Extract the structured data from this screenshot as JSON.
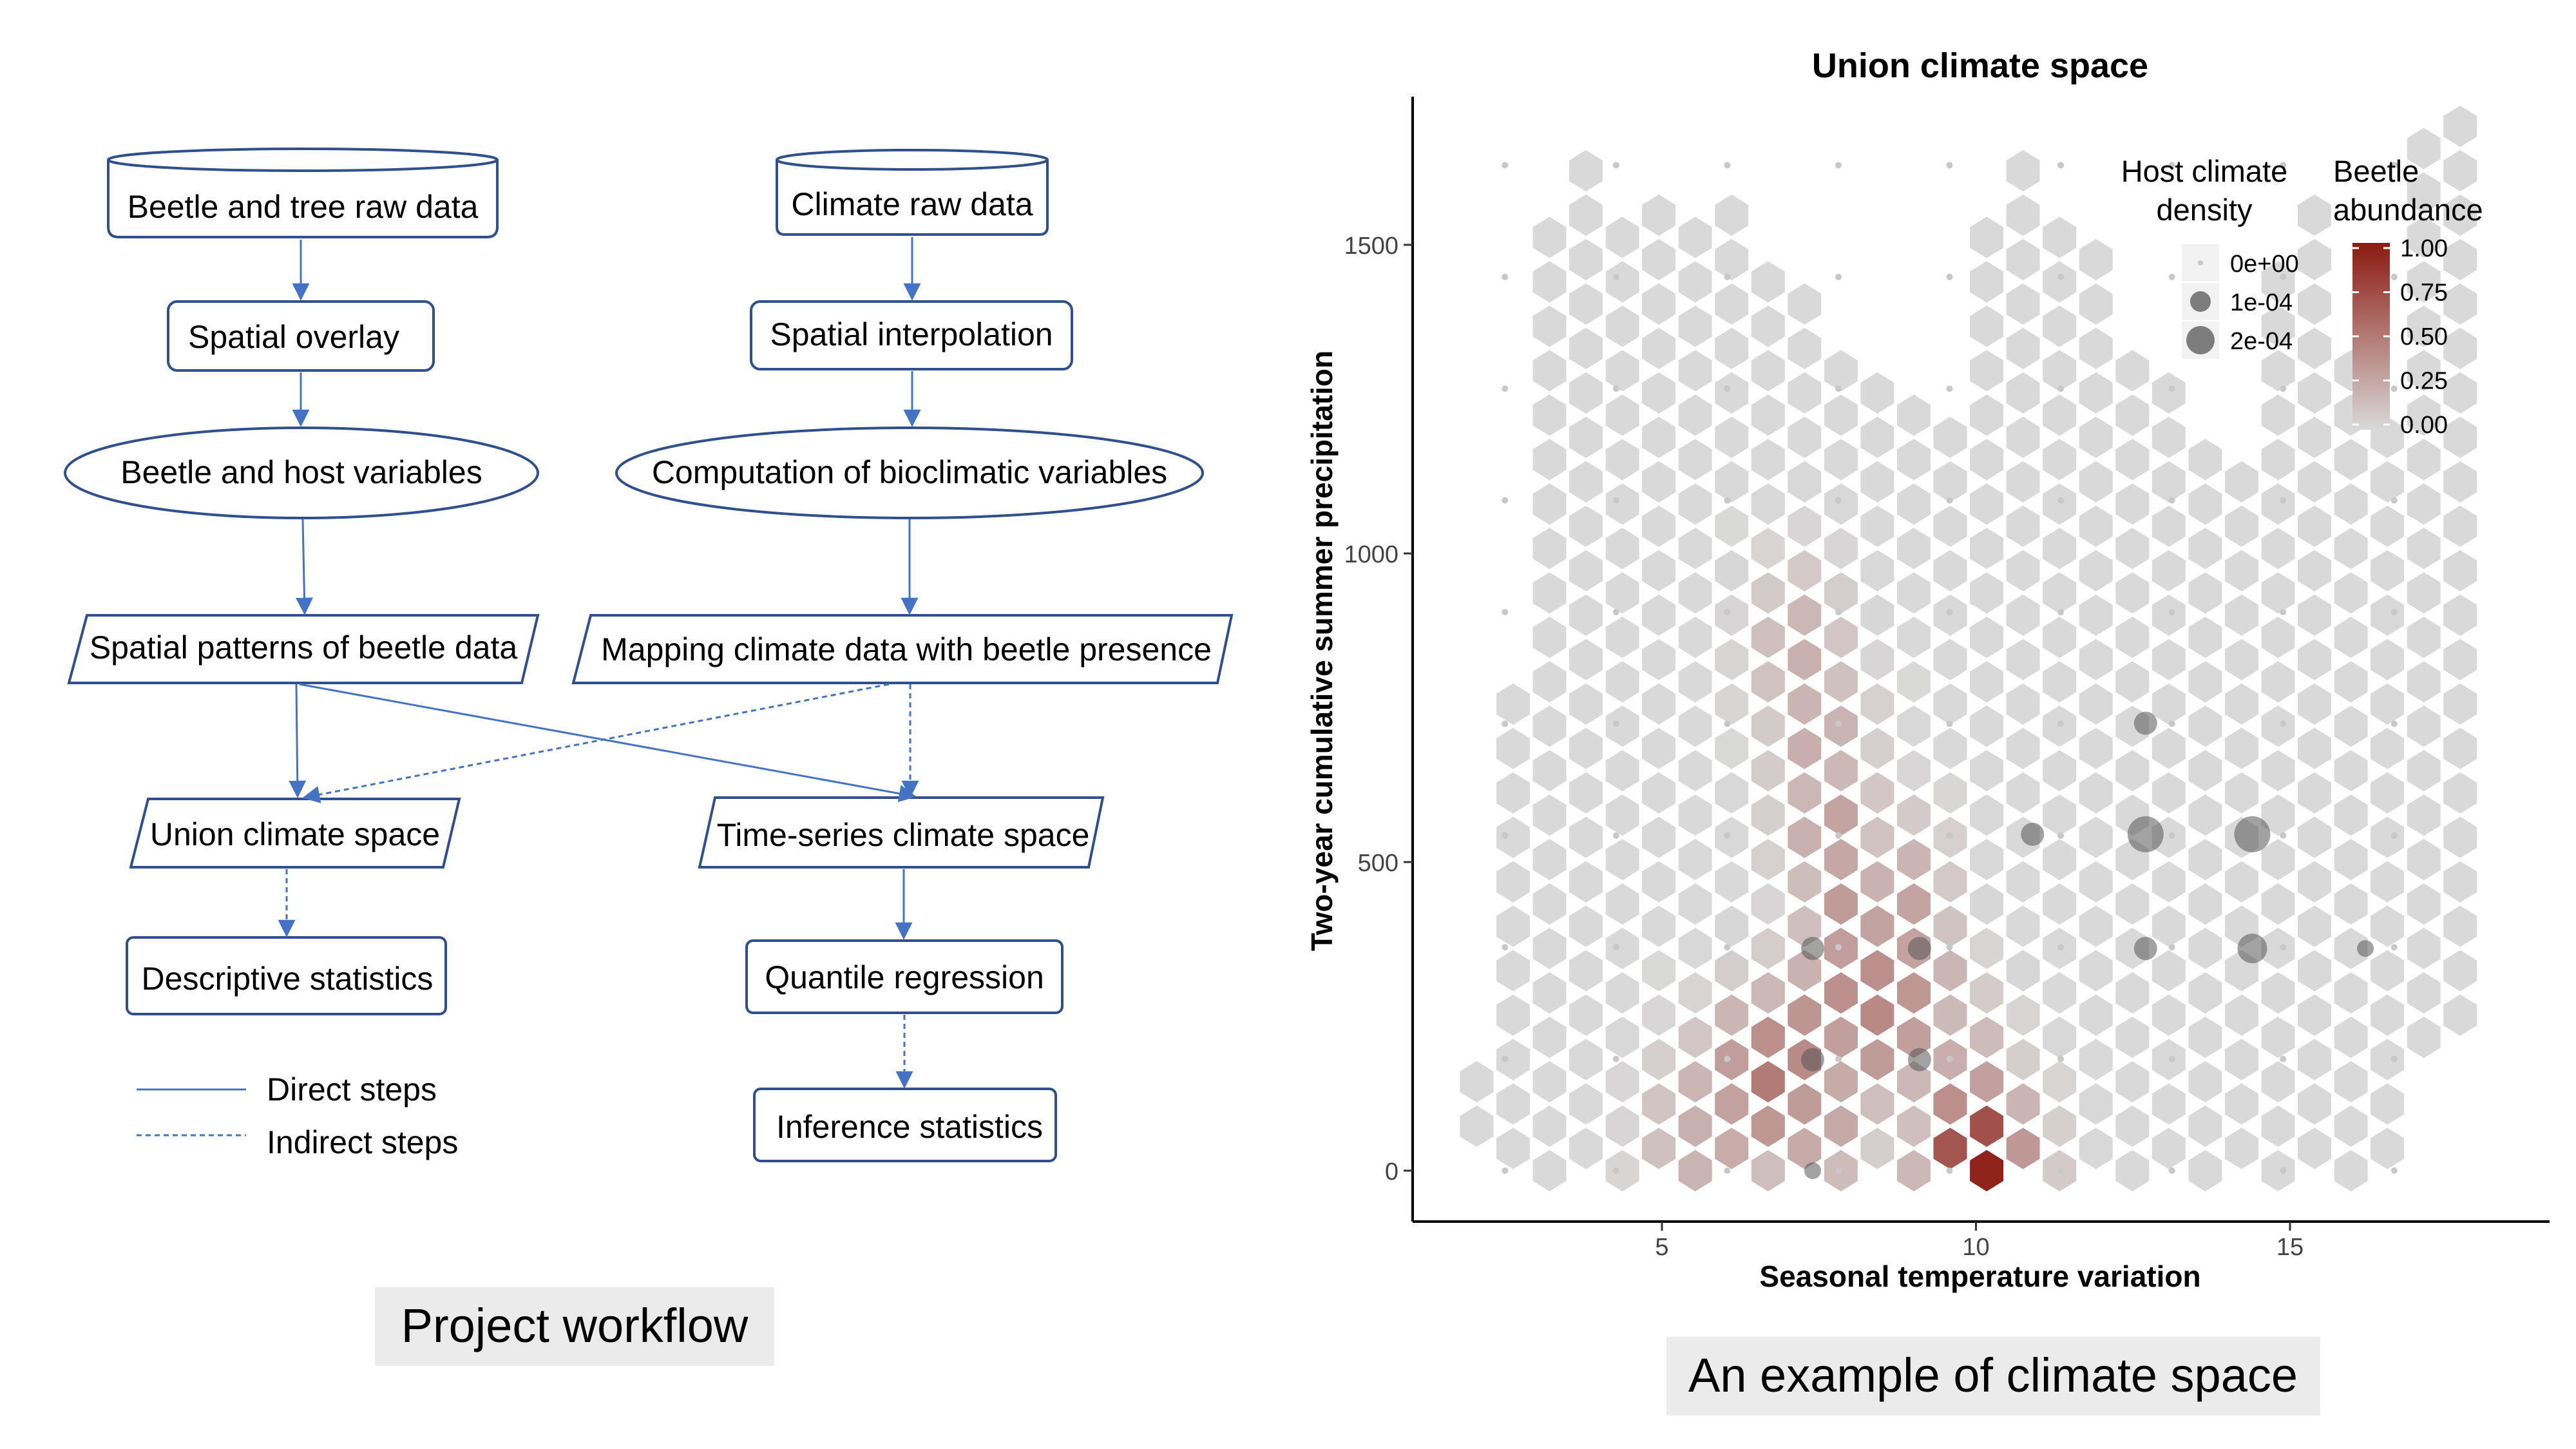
{
  "workflow": {
    "nodes": {
      "beetle_tree_raw": "Beetle and tree raw data",
      "climate_raw": "Climate raw data",
      "spatial_overlay": "Spatial overlay",
      "spatial_interpolation": "Spatial interpolation",
      "beetle_host_vars": "Beetle and host variables",
      "bioclimatic_vars": "Computation of bioclimatic variables",
      "spatial_patterns": "Spatial patterns of beetle data",
      "mapping_climate": "Mapping climate data with beetle presence",
      "union_space": "Union climate space",
      "timeseries_space": "Time-series climate space",
      "descriptive_stats": "Descriptive statistics",
      "quantile_regression": "Quantile regression",
      "inference_stats": "Inference statistics"
    },
    "legend": {
      "direct": "Direct steps",
      "indirect": "Indirect steps"
    },
    "caption": "Project workflow",
    "colors": {
      "border": "#2f4f8f",
      "arrow": "#4472c4"
    }
  },
  "climate_caption": "An example of climate space",
  "chart_data": {
    "type": "heatmap",
    "subtype": "hexbin",
    "title": "Union climate space",
    "xlabel": "Seasonal temperature variation",
    "ylabel": "Two-year cumulative summer precipitation",
    "xlim": [
      1.5,
      18.5
    ],
    "ylim": [
      -80,
      1750
    ],
    "x_ticks": [
      5,
      10,
      15
    ],
    "y_ticks": [
      0,
      500,
      1000,
      1500
    ],
    "grid": false,
    "legend_position": "top-right",
    "fill_scale": {
      "name": "Beetle abundance",
      "title_lines": [
        "Beetle",
        "abundance"
      ],
      "low_color": "#d9d9d9",
      "high_color": "#8b1a10",
      "range": [
        0,
        1
      ],
      "ticks": [
        "1.00",
        "0.75",
        "0.50",
        "0.25",
        "0.00"
      ]
    },
    "size_scale": {
      "name": "Host climate density",
      "title_lines": [
        "Host climate",
        "density"
      ],
      "entries": [
        "0e+00",
        "1e-04",
        "2e-04"
      ],
      "point_color": "#555555"
    },
    "hex_grid": {
      "x0": 2.05,
      "dx": 0.58,
      "y0": 0,
      "dy": 72,
      "columns": [
        {
          "col": 0,
          "rows": [
            1,
            2
          ],
          "min_row": 1,
          "max_row": 2
        },
        {
          "col": 1,
          "rows": [
            0,
            1,
            2,
            3,
            4,
            5,
            6,
            7,
            8,
            9,
            10
          ],
          "min_row": 0,
          "max_row": 10
        },
        {
          "col": 2,
          "rows": [
            0,
            1,
            2,
            3,
            4,
            5,
            6,
            7,
            8,
            9,
            10,
            11,
            12,
            13,
            14,
            15,
            16,
            17,
            18,
            19,
            20,
            21
          ],
          "min_row": 0,
          "max_row": 21
        },
        {
          "col": 3,
          "rows": [
            0,
            1,
            2,
            3,
            4,
            5,
            6,
            7,
            8,
            9,
            10,
            11,
            12,
            13,
            14,
            15,
            16,
            17,
            18,
            19,
            20,
            21,
            22
          ],
          "min_row": 0,
          "max_row": 22
        },
        {
          "col": 4,
          "rows": [
            0,
            1,
            2,
            3,
            4,
            5,
            6,
            7,
            8,
            9,
            10,
            11,
            12,
            13,
            14,
            15,
            16,
            17,
            18,
            19,
            20,
            21
          ],
          "min_row": 0,
          "max_row": 21
        },
        {
          "col": 5,
          "rows": [
            0,
            1,
            2,
            3,
            4,
            5,
            6,
            7,
            8,
            9,
            10,
            11,
            12,
            13,
            14,
            15,
            16,
            17,
            18,
            19,
            20,
            21
          ],
          "min_row": 0,
          "max_row": 21
        },
        {
          "col": 6,
          "rows": [
            0,
            1,
            2,
            3,
            4,
            5,
            6,
            7,
            8,
            9,
            10,
            11,
            12,
            13,
            14,
            15,
            16,
            17,
            18,
            19,
            20,
            21
          ],
          "min_row": 0,
          "max_row": 21
        },
        {
          "col": 7,
          "rows": [
            0,
            1,
            2,
            3,
            4,
            5,
            6,
            7,
            8,
            9,
            10,
            11,
            12,
            13,
            14,
            15,
            16,
            17,
            18,
            19,
            20,
            21
          ],
          "min_row": 0,
          "max_row": 21
        },
        {
          "col": 8,
          "rows": [
            0,
            1,
            2,
            3,
            4,
            5,
            6,
            7,
            8,
            9,
            10,
            11,
            12,
            13,
            14,
            15,
            16,
            17,
            18,
            19,
            20
          ],
          "min_row": 0,
          "max_row": 20
        },
        {
          "col": 9,
          "rows": [
            0,
            1,
            2,
            3,
            4,
            5,
            6,
            7,
            8,
            9,
            10,
            11,
            12,
            13,
            14,
            15,
            16,
            17,
            18,
            19
          ],
          "min_row": 0,
          "max_row": 19
        },
        {
          "col": 10,
          "rows": [
            0,
            1,
            2,
            3,
            4,
            5,
            6,
            7,
            8,
            9,
            10,
            11,
            12,
            13,
            14,
            15,
            16,
            17,
            18
          ],
          "min_row": 0,
          "max_row": 18
        },
        {
          "col": 11,
          "rows": [
            0,
            1,
            2,
            3,
            4,
            5,
            6,
            7,
            8,
            9,
            10,
            11,
            12,
            13,
            14,
            15,
            16,
            17
          ],
          "min_row": 0,
          "max_row": 17
        },
        {
          "col": 12,
          "rows": [
            0,
            1,
            2,
            3,
            4,
            5,
            6,
            7,
            8,
            9,
            10,
            11,
            12,
            13,
            14,
            15,
            16,
            17
          ],
          "min_row": 0,
          "max_row": 17
        },
        {
          "col": 13,
          "rows": [
            0,
            1,
            2,
            3,
            4,
            5,
            6,
            7,
            8,
            9,
            10,
            11,
            12,
            13,
            14,
            15,
            16
          ],
          "min_row": 0,
          "max_row": 16
        },
        {
          "col": 14,
          "rows": [
            0,
            1,
            2,
            3,
            4,
            5,
            6,
            7,
            8,
            9,
            10,
            11,
            12,
            13,
            14,
            15,
            16,
            17,
            18,
            19,
            20,
            21
          ],
          "min_row": 0,
          "max_row": 21
        },
        {
          "col": 15,
          "rows": [
            0,
            1,
            2,
            3,
            4,
            5,
            6,
            7,
            8,
            9,
            10,
            11,
            12,
            13,
            14,
            15,
            16,
            17,
            18,
            19,
            20,
            21,
            22
          ],
          "min_row": 0,
          "max_row": 22
        },
        {
          "col": 16,
          "rows": [
            0,
            1,
            2,
            3,
            4,
            5,
            6,
            7,
            8,
            9,
            10,
            11,
            12,
            13,
            14,
            15,
            16,
            17,
            18,
            19,
            20,
            21
          ],
          "min_row": 0,
          "max_row": 21
        },
        {
          "col": 17,
          "rows": [
            0,
            1,
            2,
            3,
            4,
            5,
            6,
            7,
            8,
            9,
            10,
            11,
            12,
            13,
            14,
            15,
            16,
            17,
            18,
            19,
            20
          ],
          "min_row": 0,
          "max_row": 20
        },
        {
          "col": 18,
          "rows": [
            0,
            1,
            2,
            3,
            4,
            5,
            6,
            7,
            8,
            9,
            10,
            11,
            12,
            13,
            14,
            15,
            16,
            17,
            18
          ],
          "min_row": 0,
          "max_row": 18
        },
        {
          "col": 19,
          "rows": [
            0,
            1,
            2,
            3,
            4,
            5,
            6,
            7,
            8,
            9,
            10,
            11,
            12,
            13,
            14,
            15,
            16,
            17
          ],
          "min_row": 0,
          "max_row": 17
        },
        {
          "col": 20,
          "rows": [
            0,
            1,
            2,
            3,
            4,
            5,
            6,
            7,
            8,
            9,
            10,
            11,
            12,
            13,
            14,
            15,
            16
          ],
          "min_row": 0,
          "max_row": 16
        },
        {
          "col": 21,
          "rows": [
            0,
            1,
            2,
            3,
            4,
            5,
            6,
            7,
            8,
            9,
            10,
            11,
            12,
            13,
            14,
            15
          ],
          "min_row": 0,
          "max_row": 15
        },
        {
          "col": 22,
          "rows": [
            0,
            1,
            2,
            3,
            4,
            5,
            6,
            7,
            8,
            9,
            10,
            11,
            12,
            13,
            14,
            15,
            16,
            17,
            18,
            19,
            20
          ],
          "min_row": 0,
          "max_row": 20
        },
        {
          "col": 23,
          "rows": [
            0,
            1,
            2,
            3,
            4,
            5,
            6,
            7,
            8,
            9,
            10,
            11,
            12,
            13,
            14,
            15,
            16,
            17,
            18,
            19,
            20,
            21
          ],
          "min_row": 0,
          "max_row": 21
        },
        {
          "col": 24,
          "rows": [
            0,
            1,
            2,
            3,
            4,
            5,
            6,
            7,
            8,
            9,
            10,
            11,
            12,
            13,
            14,
            15,
            16,
            17,
            18
          ],
          "min_row": 0,
          "max_row": 18
        },
        {
          "col": 25,
          "rows": [
            0,
            1,
            2,
            3,
            4,
            5,
            6,
            7,
            8,
            9,
            10,
            11,
            12,
            13,
            14,
            15,
            16
          ],
          "min_row": 0,
          "max_row": 16
        },
        {
          "col": 26,
          "rows": [
            0,
            1,
            2,
            3,
            4,
            5,
            6,
            7,
            8,
            9,
            10,
            11,
            12,
            13,
            14,
            15,
            16,
            17,
            18,
            19,
            20,
            21,
            22,
            23,
            24,
            25,
            26,
            27,
            28,
            29
          ],
          "min_row": 3,
          "max_row": 29
        },
        {
          "col": 27,
          "rows": [
            3,
            4,
            5,
            6,
            7,
            8,
            9,
            10,
            11,
            12,
            13,
            14,
            15,
            16,
            17,
            18,
            19,
            20,
            21,
            22,
            23,
            24,
            25
          ],
          "min_row": 3,
          "max_row": 25
        }
      ]
    },
    "abundance_cells": [
      {
        "x": 10.0,
        "y": 0,
        "v": 1.0
      },
      {
        "x": 6.6,
        "y": 150,
        "v": 0.5
      },
      {
        "x": 6.9,
        "y": 150,
        "v": 0.45
      },
      {
        "x": 7.2,
        "y": 200,
        "v": 0.42
      },
      {
        "x": 8.6,
        "y": 250,
        "v": 0.44
      },
      {
        "x": 8.3,
        "y": 320,
        "v": 0.4
      },
      {
        "x": 7.8,
        "y": 280,
        "v": 0.38
      },
      {
        "x": 9.0,
        "y": 300,
        "v": 0.35
      },
      {
        "x": 8.0,
        "y": 400,
        "v": 0.35
      },
      {
        "x": 8.8,
        "y": 420,
        "v": 0.3
      },
      {
        "x": 7.5,
        "y": 100,
        "v": 0.33
      },
      {
        "x": 6.0,
        "y": 100,
        "v": 0.3
      },
      {
        "x": 7.2,
        "y": 840,
        "v": 0.22
      },
      {
        "x": 7.5,
        "y": 700,
        "v": 0.25
      },
      {
        "x": 7.7,
        "y": 550,
        "v": 0.3
      },
      {
        "x": 10.5,
        "y": 0,
        "v": 0.25
      },
      {
        "x": 9.8,
        "y": 150,
        "v": 0.25
      },
      {
        "x": 5.5,
        "y": 50,
        "v": 0.22
      }
    ],
    "host_points": [
      {
        "x": 7.4,
        "y": 360,
        "density": 0.0001
      },
      {
        "x": 9.1,
        "y": 360,
        "density": 0.0001
      },
      {
        "x": 9.1,
        "y": 180,
        "density": 0.0001
      },
      {
        "x": 7.4,
        "y": 180,
        "density": 0.0001
      },
      {
        "x": 10.9,
        "y": 545,
        "density": 0.0001
      },
      {
        "x": 12.7,
        "y": 545,
        "density": 0.0002
      },
      {
        "x": 14.4,
        "y": 545,
        "density": 0.0002
      },
      {
        "x": 12.7,
        "y": 725,
        "density": 0.0001
      },
      {
        "x": 12.7,
        "y": 360,
        "density": 0.0001
      },
      {
        "x": 14.4,
        "y": 360,
        "density": 0.00015
      },
      {
        "x": 16.2,
        "y": 360,
        "density": 5e-05
      },
      {
        "x": 7.4,
        "y": 0,
        "density": 5e-05
      }
    ]
  }
}
